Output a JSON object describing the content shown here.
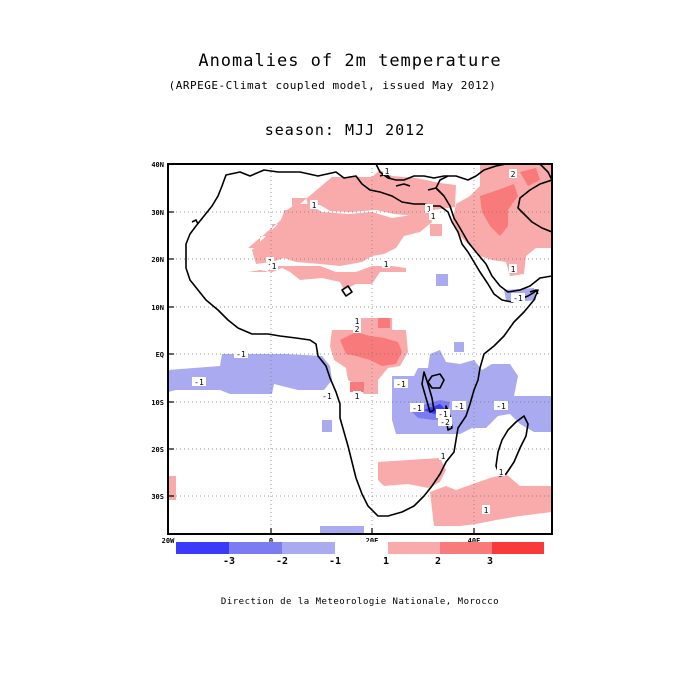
{
  "header": {
    "title": "Anomalies of 2m temperature",
    "subtitle": "(ARPEGE-Climat coupled model, issued May 2012)",
    "season": "season: MJJ 2012"
  },
  "footer": {
    "credit": "Direction de la Meteorologie Nationale, Morocco"
  },
  "map": {
    "lat_labels": [
      "40N",
      "30N",
      "20N",
      "10N",
      "EQ",
      "10S",
      "20S",
      "30S"
    ],
    "lon_labels": [
      "20W",
      "0",
      "20E",
      "40E"
    ],
    "contour_labels": [
      "1",
      "1",
      "1",
      "1",
      "2",
      "1",
      "1",
      "1",
      "2",
      "1",
      "1",
      "-1",
      "-1",
      "-1",
      "-1",
      "-1",
      "-1",
      "-1",
      "-2",
      "-1",
      "1",
      "1",
      "1",
      "1",
      "-1"
    ]
  },
  "legend": {
    "tick_labels": [
      "-3",
      "-2",
      "-1",
      "1",
      "2",
      "3"
    ],
    "colors": [
      "#3a3af8",
      "#7b7bf2",
      "#aaaaf0",
      "#ffffff",
      "#f9aaaa",
      "#f87a7a",
      "#f93a3a"
    ]
  },
  "colors": {
    "warm_1": "#f9aaaa",
    "warm_2": "#f87a7a",
    "warm_3": "#f93a3a",
    "cold_1": "#aaaaf0",
    "cold_2": "#7b7bf2",
    "cold_3": "#3a3af8"
  }
}
